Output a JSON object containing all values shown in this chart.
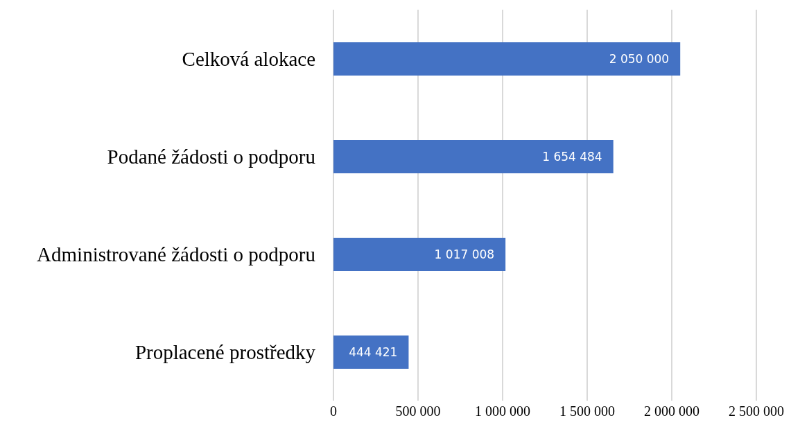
{
  "chart_data": {
    "type": "bar",
    "orientation": "horizontal",
    "categories": [
      "Celková alokace",
      "Podané žádosti o podporu",
      "Administrované žádosti o podporu",
      "Proplacené prostředky"
    ],
    "values": [
      2050000,
      1654484,
      1017008,
      444421
    ],
    "value_labels": [
      "2 050 000",
      "1 654 484",
      "1 017 008",
      "444 421"
    ],
    "color": "#4472c4",
    "xlim": [
      0,
      2500000
    ],
    "xticks": [
      0,
      {
        "value": 500000,
        "label": "500 000"
      },
      {
        "value": 1000000,
        "label": "1 000 000"
      },
      {
        "value": 1500000,
        "label": "1 500 000"
      },
      {
        "value": 2000000,
        "label": "2 000 000"
      },
      {
        "value": 2500000,
        "label": "2 500 000"
      }
    ],
    "grid": "x"
  }
}
